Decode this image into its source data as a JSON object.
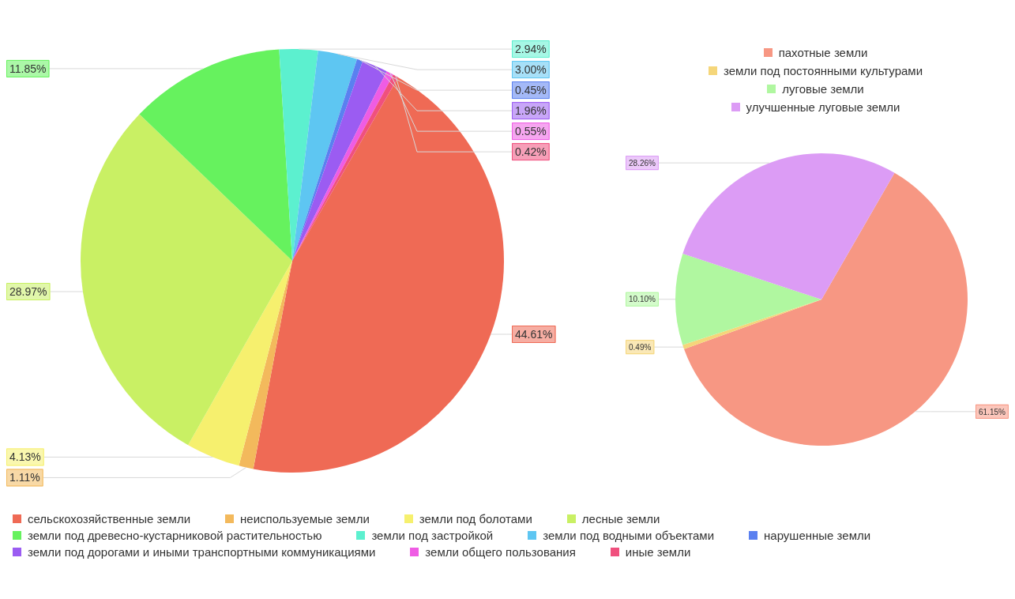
{
  "chart_data": [
    {
      "type": "pie",
      "categories": [
        "сельскохозяйственные земли",
        "неиспользуемые земли",
        "земли под болотами",
        "лесные земли",
        "земли под древесно-кустарниковой растительностью",
        "земли под застройкой",
        "земли под водными объектами",
        "нарушенные земли",
        "земли под дорогами и иными транспортными коммуникациями",
        "земли общего пользования",
        "иные земли"
      ],
      "values": [
        44.61,
        1.11,
        4.13,
        28.97,
        11.85,
        2.94,
        3.0,
        0.45,
        1.96,
        0.55,
        0.42
      ],
      "colors": [
        "#ef6a55",
        "#f3b95c",
        "#f6f06e",
        "#c9f064",
        "#66f25e",
        "#5cf0cf",
        "#5ec6f2",
        "#5a80f0",
        "#9b5cf2",
        "#ef5ce4",
        "#f0507e"
      ],
      "value_labels": [
        "44.61%",
        "1.11%",
        "4.13%",
        "28.97%",
        "11.85%",
        "2.94%",
        "3.00%",
        "0.45%",
        "1.96%",
        "0.55%",
        "0.42%"
      ],
      "legend": "bottom"
    },
    {
      "type": "pie",
      "categories": [
        "пахотные земли",
        "земли под постоянными культурами",
        "луговые земли",
        "улучшенные луговые земли"
      ],
      "values": [
        61.15,
        0.49,
        10.1,
        28.26
      ],
      "colors": [
        "#f79783",
        "#f5d67a",
        "#b0f7a0",
        "#dc9cf5"
      ],
      "value_labels": [
        "61.15%",
        "0.49%",
        "10.10%",
        "28.26%"
      ],
      "legend": "top"
    }
  ]
}
